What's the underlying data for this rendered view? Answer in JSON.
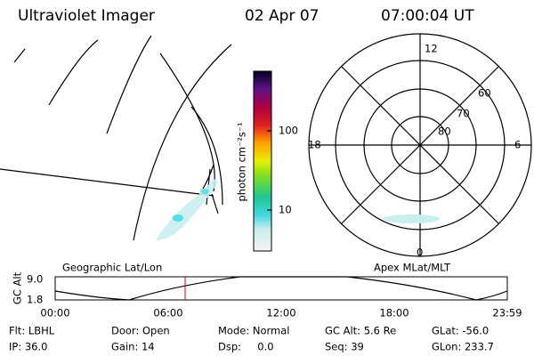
{
  "header": {
    "instrument": "Ultraviolet Imager",
    "date": "02 Apr 07",
    "time": "07:00:04 UT"
  },
  "colorbar": {
    "label": "photon cm⁻²s⁻¹",
    "ticks": [
      "100",
      "10"
    ]
  },
  "polar": {
    "mlt_labels": [
      "12",
      "18",
      "6",
      "0"
    ],
    "lat_labels": [
      "60",
      "70",
      "80"
    ]
  },
  "panel_labels": [
    "Geographic Lat/Lon",
    "Apex MLat/MLT"
  ],
  "orbit": {
    "axis_label": "GC Alt",
    "y_ticks": [
      "9.0",
      "1.8"
    ],
    "time_ticks": [
      "00:00",
      "06:00",
      "12:00",
      "18:00",
      "23:59"
    ]
  },
  "info": {
    "rows": [
      [
        "Flt: LBHL",
        "Door: Open",
        "Mode: Normal",
        "GC Alt: 5.6 Re",
        "GLat: -56.0"
      ],
      [
        "IP: 36.0",
        "Gain: 14",
        "Dsp:     0.0",
        "Seq: 39",
        "GLon: 233.7"
      ]
    ]
  }
}
